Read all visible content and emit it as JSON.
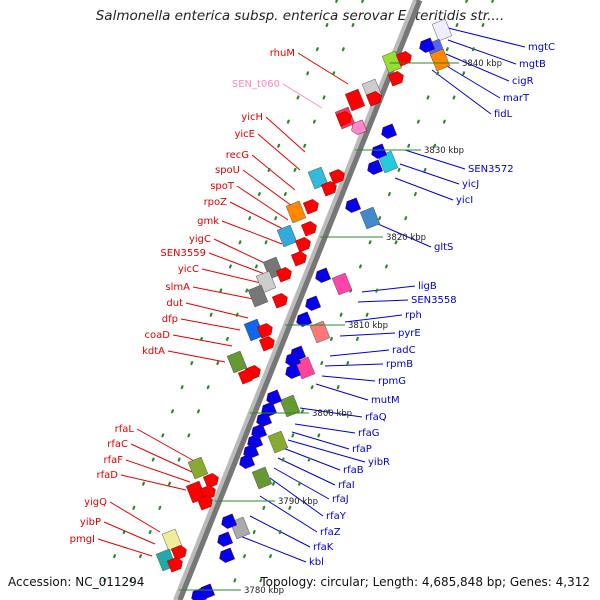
{
  "title": "Salmonella enterica subsp. enterica serovar Enteritidis str....",
  "footer": {
    "accession": "Accession: NC_011294",
    "topology": "Topology: circular; Length: 4,685,848 bp; Genes: 4,312"
  },
  "colors": {
    "forward_label": "#dd0000",
    "reverse_label": "#0000cc",
    "rna_label": "#ff88bb",
    "forward_gene": "#ff0000",
    "reverse_gene": "#0000ee",
    "backbone": "#999999"
  },
  "scale_labels": [
    "3840 kbp",
    "3830 kbp",
    "3820 kbp",
    "3810 kbp",
    "3800 kbp",
    "3790 kbp",
    "3780 kbp"
  ],
  "left_labels": [
    "rhuM",
    "SEN_t060",
    "yicH",
    "yicE",
    "recG",
    "spoU",
    "spoT",
    "rpoZ",
    "gmk",
    "yigC",
    "SEN3559",
    "yicC",
    "slmA",
    "dut",
    "dfp",
    "coaD",
    "kdtA",
    "rfaL",
    "rfaC",
    "rfaF",
    "rfaD",
    "yigQ",
    "yibP",
    "pmgI"
  ],
  "right_labels": [
    "mgtC",
    "mgtB",
    "cigR",
    "marT",
    "fidL",
    "SEN3572",
    "yicJ",
    "yicI",
    "gltS",
    "ligB",
    "SEN3558",
    "rph",
    "pyrE",
    "radC",
    "rpmB",
    "rpmG",
    "mutM",
    "rfaQ",
    "rfaG",
    "rfaP",
    "yibR",
    "rfaB",
    "rfaI",
    "rfaJ",
    "rfaY",
    "rfaZ",
    "rfaK",
    "kbl"
  ]
}
